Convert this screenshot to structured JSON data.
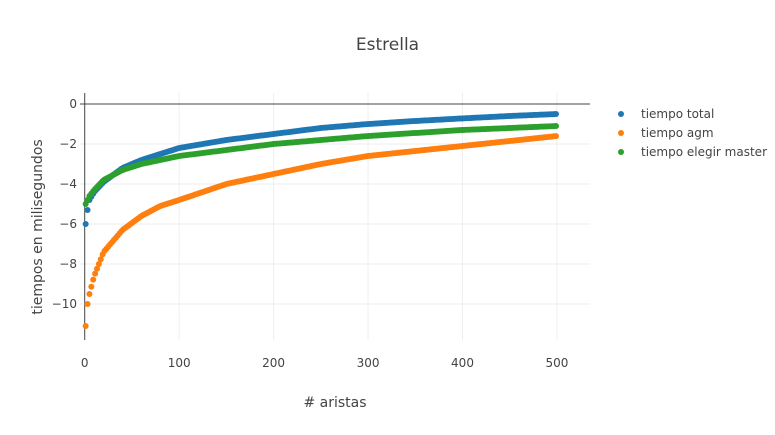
{
  "chart_data": {
    "type": "scatter",
    "title": "Estrella",
    "xlabel": "# aristas",
    "ylabel": "tiempos en milisegundos",
    "xlim": [
      -5,
      535
    ],
    "ylim": [
      -11.8,
      0.55
    ],
    "x_ticks": [
      0,
      100,
      200,
      300,
      400,
      500
    ],
    "y_ticks": [
      0,
      -2,
      -4,
      -6,
      -8,
      -10
    ],
    "grid": true,
    "legend_position": "top-right",
    "x_range": [
      1,
      500
    ],
    "series": [
      {
        "name": "tiempo total",
        "color": "#1f77b4",
        "anchors": [
          [
            1,
            -6.0
          ],
          [
            3,
            -5.3
          ],
          [
            5,
            -4.8
          ],
          [
            10,
            -4.4
          ],
          [
            20,
            -3.9
          ],
          [
            40,
            -3.2
          ],
          [
            60,
            -2.8
          ],
          [
            100,
            -2.2
          ],
          [
            150,
            -1.8
          ],
          [
            200,
            -1.5
          ],
          [
            250,
            -1.2
          ],
          [
            300,
            -1.0
          ],
          [
            350,
            -0.85
          ],
          [
            400,
            -0.72
          ],
          [
            450,
            -0.6
          ],
          [
            500,
            -0.5
          ]
        ]
      },
      {
        "name": "tiempo agm",
        "color": "#ff7f0e",
        "anchors": [
          [
            1,
            -11.1
          ],
          [
            3,
            -10.0
          ],
          [
            5,
            -9.5
          ],
          [
            10,
            -8.6
          ],
          [
            20,
            -7.4
          ],
          [
            40,
            -6.3
          ],
          [
            60,
            -5.6
          ],
          [
            80,
            -5.1
          ],
          [
            100,
            -4.8
          ],
          [
            150,
            -4.0
          ],
          [
            200,
            -3.5
          ],
          [
            250,
            -3.0
          ],
          [
            300,
            -2.6
          ],
          [
            350,
            -2.35
          ],
          [
            400,
            -2.1
          ],
          [
            450,
            -1.85
          ],
          [
            500,
            -1.6
          ]
        ]
      },
      {
        "name": "tiempo elegir master",
        "color": "#2ca02c",
        "anchors": [
          [
            1,
            -5.0
          ],
          [
            3,
            -4.8
          ],
          [
            5,
            -4.6
          ],
          [
            10,
            -4.3
          ],
          [
            20,
            -3.8
          ],
          [
            40,
            -3.3
          ],
          [
            60,
            -3.0
          ],
          [
            100,
            -2.6
          ],
          [
            150,
            -2.3
          ],
          [
            200,
            -2.0
          ],
          [
            250,
            -1.8
          ],
          [
            300,
            -1.6
          ],
          [
            350,
            -1.45
          ],
          [
            400,
            -1.3
          ],
          [
            450,
            -1.2
          ],
          [
            500,
            -1.1
          ]
        ]
      }
    ]
  }
}
